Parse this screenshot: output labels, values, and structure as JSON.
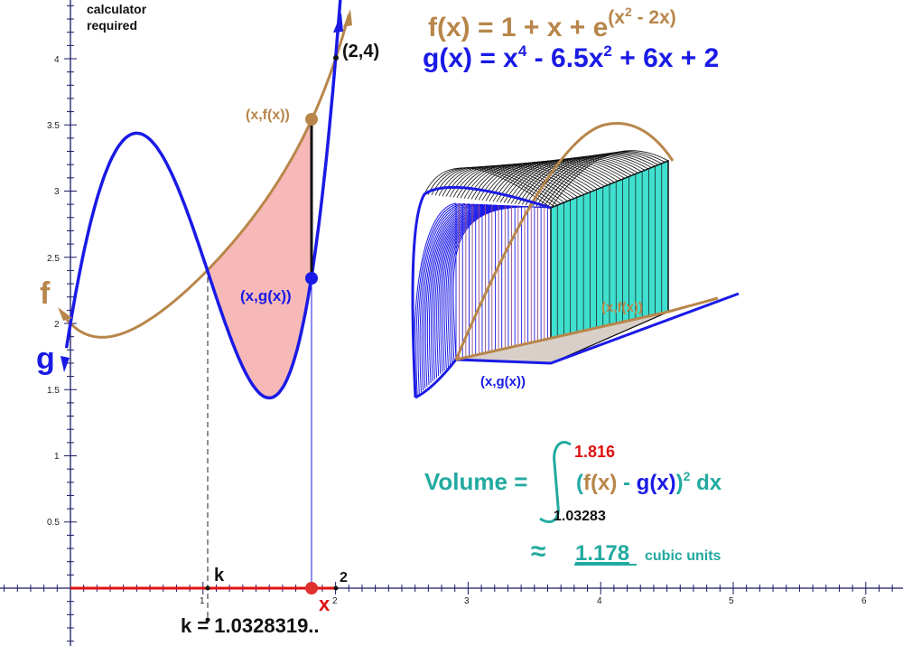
{
  "note": "calculator\nrequired",
  "note_lines": [
    "calculator",
    "required"
  ],
  "f_formula": {
    "lhs": "f(x) = 1 + x + e",
    "exponent": "(x",
    "exp_power": "2",
    "exponent_tail": " - 2x)"
  },
  "g_formula": {
    "part1": "g(x) = x",
    "pow4": "4",
    "part2": " - 6.5x",
    "pow2": "2",
    "part3": " + 6x + 2"
  },
  "labels": {
    "point_2_4": "(2,4)",
    "x_fx": "(x,f(x))",
    "x_gx": "(x,g(x))",
    "f": "f",
    "g": "g",
    "k": "k",
    "x": "x",
    "two": "2",
    "solid_fx": "(x,f(x))",
    "solid_gx": "(x,g(x))"
  },
  "k_value": "k = 1.0328319..",
  "volume": {
    "label": "Volume =",
    "upper": "1.816",
    "lower": "1.03283",
    "integrand_open": "(",
    "f_part": "f(x)",
    "minus": " - ",
    "g_part": "g(x)",
    "integrand_close": ")",
    "power": "2",
    "dx": " dx",
    "approx": "≈",
    "result": "1.178",
    "units": "cubic units"
  },
  "axes": {
    "x_ticks": [
      "1",
      "2",
      "3",
      "4",
      "5",
      "6"
    ],
    "y_ticks": [
      "0.5",
      "1",
      "1.5",
      "2",
      "2.5",
      "3",
      "3.5",
      "4"
    ]
  },
  "colors": {
    "f": "#b8864b",
    "g": "#1a1ae6",
    "shade": "#f7b8b8",
    "teal": "#22aaa0",
    "red": "#e01010",
    "solid_face": "#40e0d0"
  }
}
